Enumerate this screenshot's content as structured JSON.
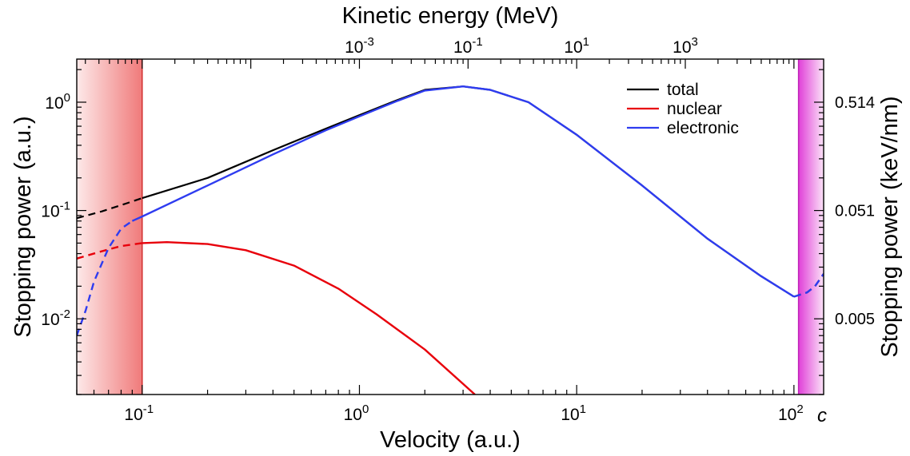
{
  "chart_data": {
    "type": "line",
    "title": "",
    "xlabel": "Velocity (a.u.)",
    "x2label": "Kinetic energy (MeV)",
    "ylabel": "Stopping power (a.u.)",
    "y2label": "Stopping power (keV/nm)",
    "x_scale": "log",
    "y_scale": "log",
    "xlim": [
      0.05,
      137
    ],
    "ylim": [
      0.002,
      2.5
    ],
    "x_ticks": [
      {
        "value": 0.1,
        "base": "10",
        "exp": "-1"
      },
      {
        "value": 1,
        "base": "10",
        "exp": "0"
      },
      {
        "value": 10,
        "base": "10",
        "exp": "1"
      },
      {
        "value": 100,
        "base": "10",
        "exp": "2"
      }
    ],
    "x_end_label": "c",
    "y_ticks": [
      {
        "value": 0.01,
        "base": "10",
        "exp": "-2"
      },
      {
        "value": 0.1,
        "base": "10",
        "exp": "-1"
      },
      {
        "value": 1,
        "base": "10",
        "exp": "0"
      }
    ],
    "x2_ticks": [
      {
        "value": 0.1,
        "base": "10",
        "exp": "-3"
      },
      {
        "value": 1,
        "base": "10",
        "exp": "-1"
      },
      {
        "value": 10,
        "base": "10",
        "exp": "1"
      },
      {
        "value": 100,
        "base": "10",
        "exp": "3"
      }
    ],
    "y2_ticks": [
      {
        "value": 0.01,
        "label": "0.005"
      },
      {
        "value": 0.1,
        "label": "0.051"
      },
      {
        "value": 1,
        "label": "0.514"
      }
    ],
    "shaded_regions": [
      {
        "x_start": 0.05,
        "x_end": 0.1,
        "color_start": "#fde9e9",
        "color_end": "#f07a7a"
      },
      {
        "x_start": 105,
        "x_end": 137,
        "color_start": "#e040d8",
        "color_end": "#fbe2f7"
      }
    ],
    "legend": {
      "position": "top-right"
    },
    "series": [
      {
        "name": "total",
        "color": "#000000",
        "segments": [
          {
            "style": "dashed",
            "x": [
              0.05,
              0.065,
              0.08,
              0.1
            ],
            "y": [
              0.085,
              0.098,
              0.112,
              0.13
            ]
          },
          {
            "style": "solid",
            "x": [
              0.1,
              0.2,
              0.4,
              0.7,
              1.0,
              1.5,
              2.0,
              3.0,
              4.0,
              6.0,
              10,
              20,
              40,
              70,
              100
            ],
            "y": [
              0.13,
              0.2,
              0.36,
              0.57,
              0.76,
              1.05,
              1.3,
              1.4,
              1.3,
              1.0,
              0.5,
              0.17,
              0.055,
              0.025,
              0.016
            ]
          },
          {
            "style": "dashed",
            "x": [
              100,
              115,
              125,
              137
            ],
            "y": [
              0.016,
              0.0175,
              0.02,
              0.026
            ]
          }
        ]
      },
      {
        "name": "nuclear",
        "color": "#e8000b",
        "segments": [
          {
            "style": "dashed",
            "x": [
              0.05,
              0.065,
              0.08,
              0.1
            ],
            "y": [
              0.036,
              0.042,
              0.047,
              0.05
            ]
          },
          {
            "style": "solid",
            "x": [
              0.1,
              0.13,
              0.2,
              0.3,
              0.5,
              0.8,
              1.2,
              2.0,
              3.4
            ],
            "y": [
              0.05,
              0.051,
              0.049,
              0.043,
              0.031,
              0.019,
              0.011,
              0.0052,
              0.002
            ]
          }
        ]
      },
      {
        "name": "electronic",
        "color": "#2e3cf0",
        "segments": [
          {
            "style": "dashed",
            "x": [
              0.05,
              0.055,
              0.06,
              0.07,
              0.08,
              0.09
            ],
            "y": [
              0.007,
              0.012,
              0.022,
              0.045,
              0.068,
              0.08
            ]
          },
          {
            "style": "solid",
            "x": [
              0.09,
              0.1,
              0.2,
              0.4,
              0.7,
              1.0,
              1.5,
              2.0,
              3.0,
              4.0,
              6.0,
              10,
              20,
              40,
              70,
              100
            ],
            "y": [
              0.08,
              0.088,
              0.17,
              0.33,
              0.55,
              0.74,
              1.03,
              1.28,
              1.4,
              1.3,
              1.0,
              0.5,
              0.17,
              0.055,
              0.025,
              0.016
            ]
          },
          {
            "style": "dashed",
            "x": [
              100,
              115,
              125,
              137
            ],
            "y": [
              0.016,
              0.0175,
              0.02,
              0.026
            ]
          }
        ]
      }
    ]
  }
}
